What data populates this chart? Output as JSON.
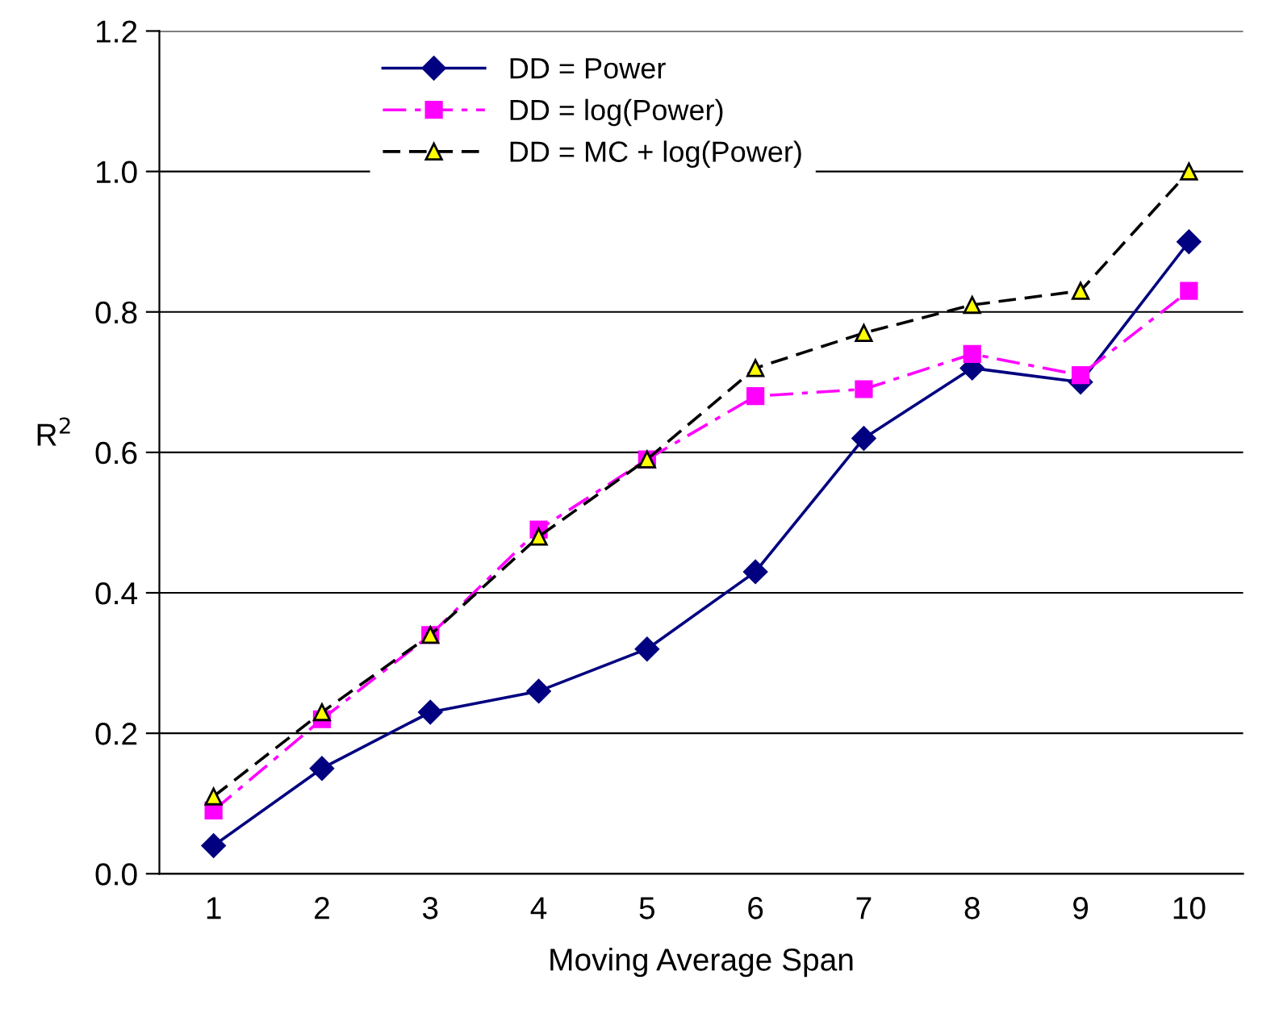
{
  "chart_data": {
    "type": "line",
    "xlabel": "Moving Average Span",
    "ylabel": "R$^{2}$",
    "categories": [
      "1",
      "2",
      "3",
      "4",
      "5",
      "6",
      "7",
      "8",
      "9",
      "10"
    ],
    "series": [
      {
        "name": "DD = Power",
        "color": "#000080",
        "marker": "diamond",
        "line_style": "solid",
        "values": [
          0.04,
          0.15,
          0.23,
          0.26,
          0.32,
          0.43,
          0.62,
          0.72,
          0.7,
          0.9
        ]
      },
      {
        "name": "DD = log(Power)",
        "color": "#ff00ff",
        "marker": "square",
        "line_style": "dashdot",
        "values": [
          0.09,
          0.22,
          0.34,
          0.49,
          0.59,
          0.68,
          0.69,
          0.74,
          0.71,
          0.83
        ]
      },
      {
        "name": "DD = MC + log(Power)",
        "color": "#000000",
        "marker": "triangle",
        "line_style": "dashed",
        "values": [
          0.11,
          0.23,
          0.34,
          0.48,
          0.59,
          0.72,
          0.77,
          0.81,
          0.83,
          1.0
        ]
      }
    ],
    "ylim": [
      0,
      1.2
    ],
    "yticks": [
      {
        "value": 0,
        "label": "0.0"
      },
      {
        "value": 0.2,
        "label": "0.2"
      },
      {
        "value": 0.4,
        "label": "0.4"
      },
      {
        "value": 0.6,
        "label": "0.6"
      },
      {
        "value": 0.8,
        "label": "0.8"
      },
      {
        "value": 1.0,
        "label": "1.0"
      },
      {
        "value": 1.2,
        "label": "1.2"
      }
    ],
    "grid": "y",
    "legend": "top"
  }
}
